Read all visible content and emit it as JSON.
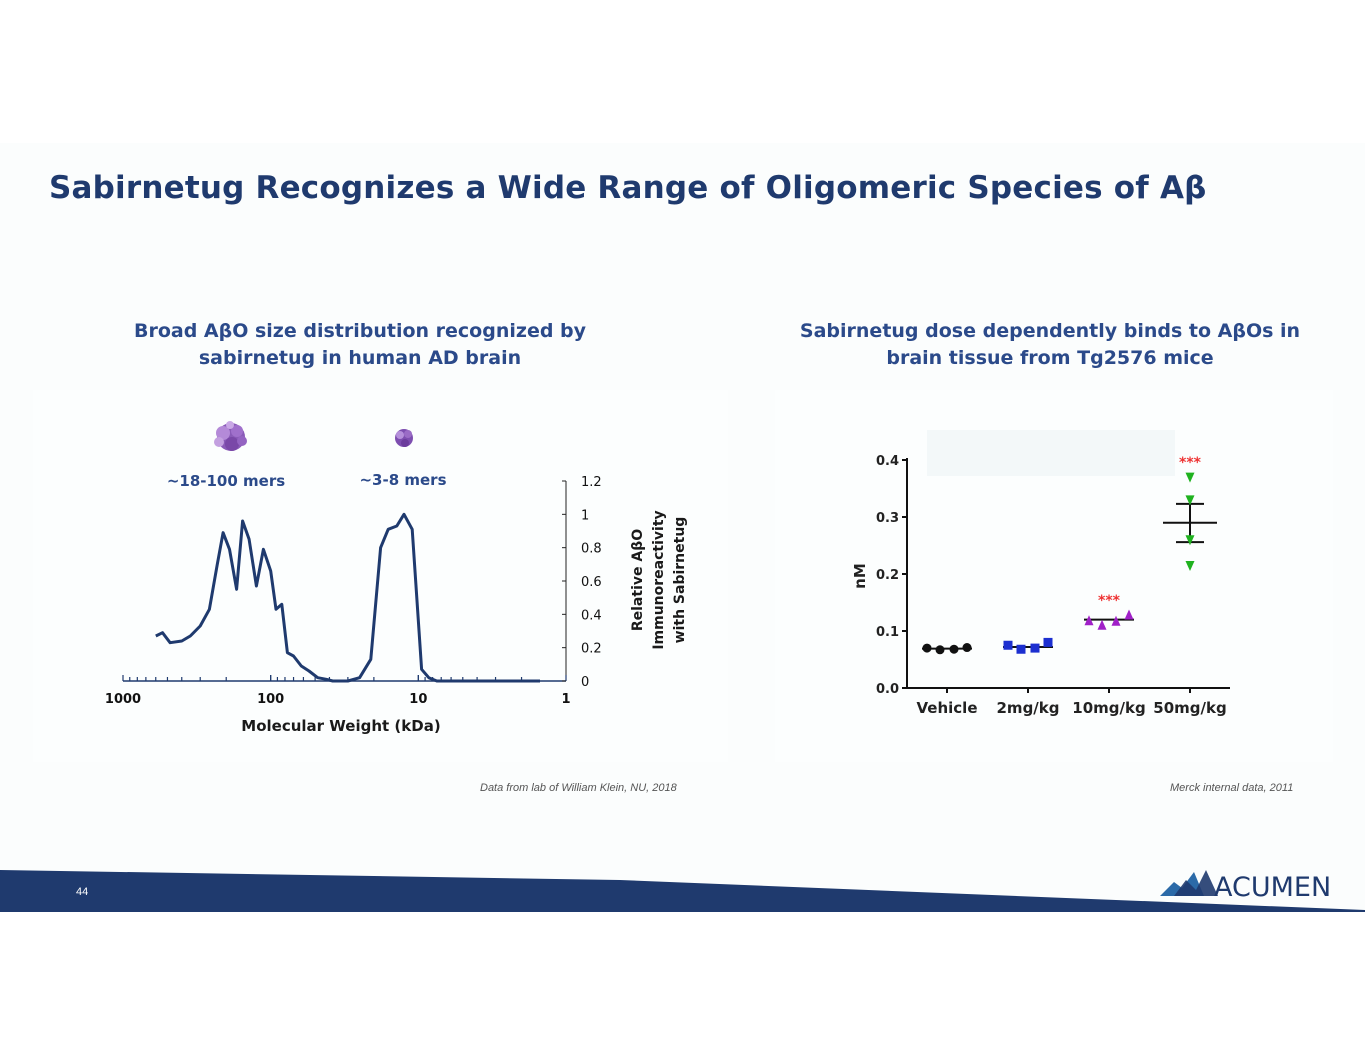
{
  "slide": {
    "title": "Sabirnetug Recognizes a Wide Range of Oligomeric Species of Aβ",
    "page_number": "44",
    "logo_text": "ACUMEN",
    "colors": {
      "navy": "#1f3a6e",
      "accent": "#2b4a8a"
    }
  },
  "left_panel": {
    "subtitle_line1": "Broad AβO size distribution recognized by",
    "subtitle_line2": "sabirnetug in human AD brain",
    "source": "Data from lab of William Klein, NU, 2018"
  },
  "right_panel": {
    "subtitle_line1": "Sabirnetug dose dependently binds to AβOs in",
    "subtitle_line2": "brain tissue from Tg2576 mice",
    "source": "Merck internal data, 2011"
  },
  "chart_data": [
    {
      "type": "line",
      "title": "",
      "xlabel": "Molecular Weight (kDa)",
      "ylabel_lines": [
        "Relative AβO",
        "Immunoreactivity",
        "with Sabirnetug"
      ],
      "x_scale": "log-reversed",
      "xlim": [
        1000,
        1
      ],
      "ylim": [
        0,
        1.2
      ],
      "x_ticks": [
        "1000",
        "100",
        "10",
        "1"
      ],
      "y_ticks": [
        "1.2",
        "1",
        "0.8",
        "0.6",
        "0.4",
        "0.2",
        "0"
      ],
      "annotations": [
        "~18-100 mers",
        "~3-8 mers"
      ],
      "series": [
        {
          "name": "Sabirnetug immunoreactivity",
          "color": "#1f3a6e",
          "points": [
            [
              600,
              0.27
            ],
            [
              540,
              0.29
            ],
            [
              480,
              0.23
            ],
            [
              400,
              0.24
            ],
            [
              350,
              0.27
            ],
            [
              300,
              0.33
            ],
            [
              260,
              0.43
            ],
            [
              230,
              0.7
            ],
            [
              210,
              0.89
            ],
            [
              190,
              0.79
            ],
            [
              170,
              0.55
            ],
            [
              155,
              0.96
            ],
            [
              140,
              0.85
            ],
            [
              125,
              0.57
            ],
            [
              112,
              0.79
            ],
            [
              100,
              0.66
            ],
            [
              92,
              0.43
            ],
            [
              84,
              0.46
            ],
            [
              77,
              0.17
            ],
            [
              70,
              0.15
            ],
            [
              62,
              0.09
            ],
            [
              55,
              0.06
            ],
            [
              48,
              0.02
            ],
            [
              42,
              0.01
            ],
            [
              38,
              0.0
            ],
            [
              30,
              0.0
            ],
            [
              25,
              0.02
            ],
            [
              21,
              0.13
            ],
            [
              18,
              0.8
            ],
            [
              16,
              0.91
            ],
            [
              14,
              0.93
            ],
            [
              12.5,
              1.0
            ],
            [
              11,
              0.91
            ],
            [
              9.5,
              0.07
            ],
            [
              8.5,
              0.02
            ],
            [
              7.5,
              0.0
            ],
            [
              5,
              0.0
            ],
            [
              3,
              0.0
            ],
            [
              1.5,
              0.0
            ]
          ]
        }
      ]
    },
    {
      "type": "scatter",
      "title": "",
      "xlabel": "",
      "ylabel": "nM",
      "ylim": [
        0,
        0.4
      ],
      "y_ticks": [
        "0.0",
        "0.1",
        "0.2",
        "0.3",
        "0.4"
      ],
      "categories": [
        "Vehicle",
        "2mg/kg",
        "10mg/kg",
        "50mg/kg"
      ],
      "significance": [
        "",
        "",
        "***",
        "***"
      ],
      "series": [
        {
          "name": "Vehicle",
          "color": "#111111",
          "marker": "circle",
          "values": [
            0.07,
            0.067,
            0.068,
            0.071
          ],
          "mean": 0.069
        },
        {
          "name": "2mg/kg",
          "color": "#1c2fd0",
          "marker": "square",
          "values": [
            0.075,
            0.068,
            0.07,
            0.08
          ],
          "mean": 0.072
        },
        {
          "name": "10mg/kg",
          "color": "#a020c8",
          "marker": "triangle-up",
          "values": [
            0.118,
            0.11,
            0.117,
            0.128
          ],
          "mean": 0.12
        },
        {
          "name": "50mg/kg",
          "color": "#1fb21f",
          "marker": "triangle-down",
          "values": [
            0.37,
            0.33,
            0.26,
            0.215
          ],
          "mean": 0.29,
          "sem_low": 0.256,
          "sem_high": 0.323
        }
      ]
    }
  ]
}
